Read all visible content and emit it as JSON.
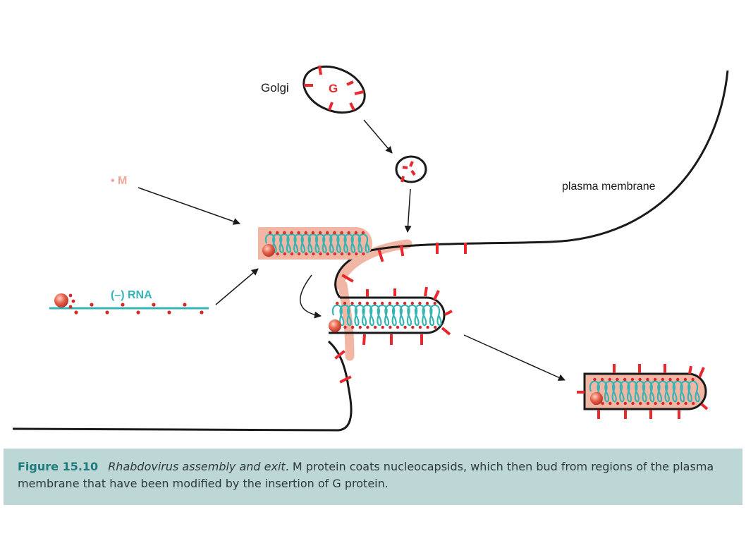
{
  "labels": {
    "golgi": "Golgi",
    "g_protein": "G",
    "m_protein": "• M",
    "rna": "(–) RNA",
    "plasma_membrane": "plasma membrane"
  },
  "caption": {
    "figure_number": "Figure 15.10",
    "title": "Rhabdovirus assembly and exit",
    "text": ". M protein coats nucleocapsids, which then bud from regions of the plasma membrane that have been modified by the insertion of G protein."
  },
  "colors": {
    "membrane": "#1a1a1a",
    "g_protein": "#e8282d",
    "m_coat": "#f2b7a4",
    "rna": "#35b5b5",
    "m_dots": "#d42a2a",
    "polymerase": "#e8604a",
    "caption_bg": "#bcd7d6",
    "caption_fig": "#1f7c7c"
  }
}
